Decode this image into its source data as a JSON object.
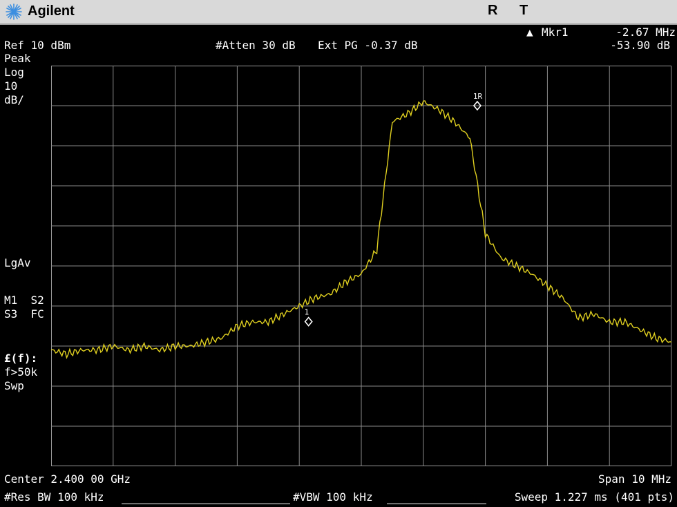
{
  "header": {
    "brand": "Agilent",
    "status_r": "R",
    "status_t": "T"
  },
  "marker": {
    "delta_symbol": "▲",
    "label": "Mkr1",
    "freq": "-2.67 MHz",
    "ampl": "-53.90 dB"
  },
  "settings": {
    "ref_level": "Ref 10 dBm",
    "atten": "#Atten 30 dB",
    "ext_pg": "Ext PG -0.37 dB"
  },
  "left_annotations": {
    "detector": "Peak",
    "scale_type": "Log",
    "scale_value": "10",
    "scale_unit": "dB/",
    "average": "LgAv",
    "trigger_1": "M1  S2",
    "trigger_2": "S3  FC",
    "corr_1": "£(f):",
    "corr_2": "f>50k",
    "corr_3": "Swp"
  },
  "footer": {
    "center": "Center 2.400 00 GHz",
    "span": "Span 10 MHz",
    "res_bw": "#Res BW 100 kHz",
    "vbw": "#VBW 100 kHz",
    "sweep": "Sweep 1.227 ms (401 pts)"
  },
  "chart_data": {
    "type": "line",
    "xlabel": "",
    "ylabel": "",
    "xlim": [
      2395,
      2405
    ],
    "ylim": [
      -90,
      10
    ],
    "grid": true,
    "trace_color": "#e0d020",
    "series": [
      {
        "x": [
          2395.0,
          2395.25,
          2395.5,
          2395.75,
          2396.0,
          2396.25,
          2396.5,
          2396.75,
          2397.0,
          2397.25,
          2397.5,
          2397.75,
          2398.0,
          2398.25,
          2398.5,
          2398.75,
          2399.0,
          2399.25,
          2399.5,
          2399.75,
          2400.0,
          2400.25,
          2400.5,
          2400.75,
          2401.0,
          2401.25,
          2401.5,
          2401.75,
          2402.0,
          2402.25,
          2402.5,
          2402.75,
          2403.0,
          2403.25,
          2403.5,
          2403.75,
          2404.0,
          2404.25,
          2404.5,
          2404.75,
          2405.0
        ],
        "y": [
          -61,
          -62,
          -61,
          -61,
          -60,
          -61,
          -60,
          -61,
          -60,
          -60,
          -59,
          -58,
          -55,
          -54,
          -54,
          -52,
          -50,
          -48,
          -47,
          -44,
          -42,
          -36,
          -4,
          -2,
          1,
          -1,
          -4,
          -8,
          -32,
          -38,
          -40,
          -42,
          -45,
          -48,
          -53,
          -52,
          -54,
          -54,
          -56,
          -58,
          -59
        ]
      }
    ],
    "markers": [
      {
        "label": "1",
        "x": 2399.15,
        "y": -53.9
      },
      {
        "label": "1R",
        "x": 2401.87,
        "y": 0
      }
    ]
  }
}
